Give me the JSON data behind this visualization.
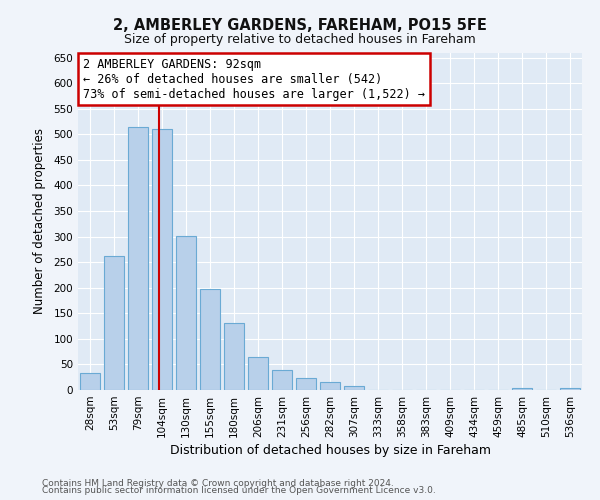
{
  "title": "2, AMBERLEY GARDENS, FAREHAM, PO15 5FE",
  "subtitle": "Size of property relative to detached houses in Fareham",
  "xlabel": "Distribution of detached houses by size in Fareham",
  "ylabel": "Number of detached properties",
  "bar_labels": [
    "28sqm",
    "53sqm",
    "79sqm",
    "104sqm",
    "130sqm",
    "155sqm",
    "180sqm",
    "206sqm",
    "231sqm",
    "256sqm",
    "282sqm",
    "307sqm",
    "333sqm",
    "358sqm",
    "383sqm",
    "409sqm",
    "434sqm",
    "459sqm",
    "485sqm",
    "510sqm",
    "536sqm"
  ],
  "bar_values": [
    33,
    263,
    515,
    510,
    302,
    197,
    131,
    65,
    40,
    23,
    15,
    8,
    0,
    0,
    0,
    0,
    0,
    0,
    3,
    0,
    3
  ],
  "bar_color": "#b8d0ea",
  "bar_edge_color": "#6aaad4",
  "marker_line_color": "#cc0000",
  "ylim": [
    0,
    660
  ],
  "yticks": [
    0,
    50,
    100,
    150,
    200,
    250,
    300,
    350,
    400,
    450,
    500,
    550,
    600,
    650
  ],
  "annotation_line1": "2 AMBERLEY GARDENS: 92sqm",
  "annotation_line2": "← 26% of detached houses are smaller (542)",
  "annotation_line3": "73% of semi-detached houses are larger (1,522) →",
  "annotation_box_color": "#ffffff",
  "annotation_box_edge": "#cc0000",
  "footer_line1": "Contains HM Land Registry data © Crown copyright and database right 2024.",
  "footer_line2": "Contains public sector information licensed under the Open Government Licence v3.0.",
  "background_color": "#f0f4fa",
  "plot_bg_color": "#e0eaf5",
  "grid_color": "#ffffff",
  "title_fontsize": 10.5,
  "subtitle_fontsize": 9,
  "ylabel_fontsize": 8.5,
  "xlabel_fontsize": 9,
  "tick_fontsize": 7.5,
  "annot_fontsize": 8.5,
  "footer_fontsize": 6.5
}
